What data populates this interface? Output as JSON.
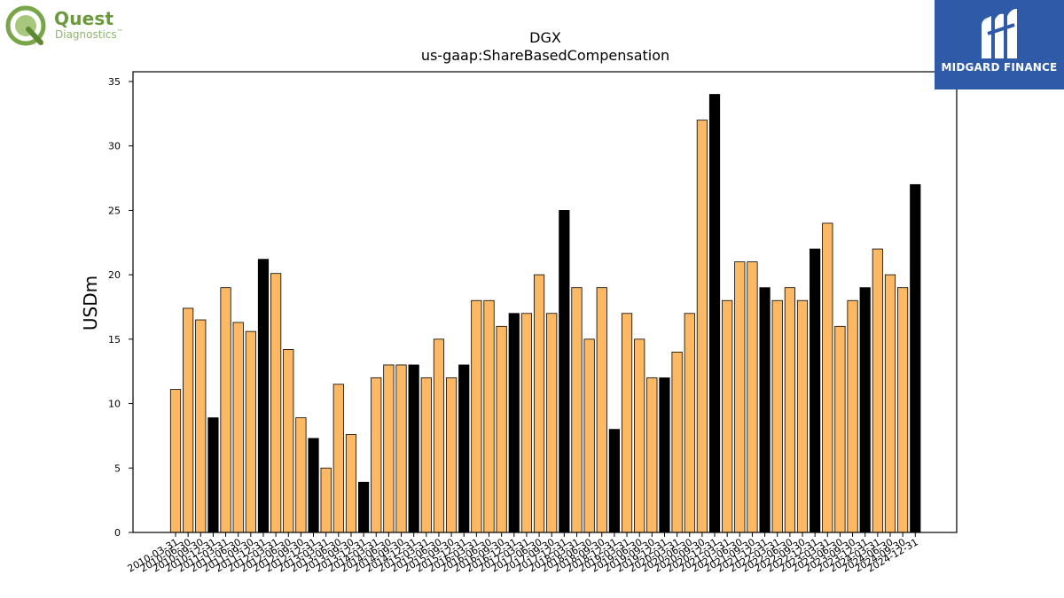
{
  "logos": {
    "left_word": "Quest",
    "left_sub": "Diagnostics",
    "left_tm": "™",
    "right_text": "MIDGARD FINANCE"
  },
  "colors": {
    "bar_orange": "#fdb863",
    "bar_black": "#000000",
    "quest_green": "#6a9a3c",
    "midgard_blue": "#2e5aa8"
  },
  "chart_data": {
    "type": "bar",
    "title": "DGX",
    "subtitle": "us-gaap:ShareBasedCompensation",
    "ylabel": "USDm",
    "xlabel": "",
    "ylim": [
      0,
      35
    ],
    "yticks": [
      0,
      5,
      10,
      15,
      20,
      25,
      30,
      35
    ],
    "grid": false,
    "categories": [
      "2010-03-31",
      "2010-06-30",
      "2010-09-30",
      "2010-12-31",
      "2011-03-31",
      "2011-06-30",
      "2011-09-30",
      "2011-12-31",
      "2012-03-31",
      "2012-06-30",
      "2012-09-30",
      "2012-12-31",
      "2013-03-31",
      "2013-06-30",
      "2013-09-30",
      "2013-12-31",
      "2014-03-31",
      "2014-06-30",
      "2014-09-30",
      "2014-12-31",
      "2015-03-31",
      "2015-06-30",
      "2015-09-30",
      "2015-12-31",
      "2016-03-31",
      "2016-06-30",
      "2016-09-30",
      "2016-12-31",
      "2017-03-31",
      "2017-06-30",
      "2017-09-30",
      "2017-12-31",
      "2018-03-31",
      "2018-06-30",
      "2018-09-30",
      "2018-12-31",
      "2019-03-31",
      "2019-06-30",
      "2019-09-30",
      "2019-12-31",
      "2020-03-31",
      "2020-06-30",
      "2020-09-30",
      "2020-12-31",
      "2021-03-31",
      "2021-06-30",
      "2021-09-30",
      "2021-12-31",
      "2022-03-31",
      "2022-06-30",
      "2022-09-30",
      "2022-12-31",
      "2023-03-31",
      "2023-06-30",
      "2023-09-30",
      "2023-12-31",
      "2024-03-31",
      "2024-06-30",
      "2024-09-30",
      "2024-12-31"
    ],
    "values": [
      11.1,
      17.4,
      16.5,
      8.9,
      19.0,
      16.3,
      15.6,
      21.2,
      20.1,
      14.2,
      8.9,
      7.3,
      5.0,
      11.5,
      7.6,
      3.9,
      12.0,
      13.0,
      13.0,
      13.0,
      12.0,
      15.0,
      12.0,
      13.0,
      18.0,
      18.0,
      16.0,
      17.0,
      17.0,
      20.0,
      17.0,
      25.0,
      19.0,
      15.0,
      19.0,
      8.0,
      17.0,
      15.0,
      12.0,
      12.0,
      14.0,
      17.0,
      32.0,
      34.0,
      18.0,
      21.0,
      21.0,
      19.0,
      18.0,
      19.0,
      18.0,
      22.0,
      24.0,
      16.0,
      18.0,
      19.0,
      22.0,
      20.0,
      19.0,
      27.0
    ]
  }
}
